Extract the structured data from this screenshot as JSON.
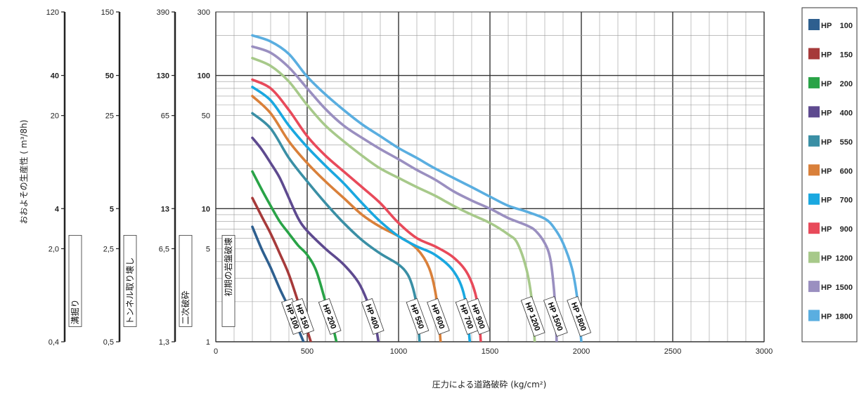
{
  "chart_data": {
    "type": "line",
    "xlabel": "圧力による道路破砕 (kg/cm²)",
    "ylabel": "おおよその生産性 ( m³/8h)",
    "xlim": [
      0,
      3000
    ],
    "x_ticks": [
      0,
      500,
      1000,
      1500,
      2000,
      2500,
      3000
    ],
    "y_scale": "log",
    "ylim": [
      1,
      300
    ],
    "y_ticks": [
      {
        "v": 1,
        "label": "1"
      },
      {
        "v": 5,
        "label": "5"
      },
      {
        "v": 10,
        "label": "10",
        "bold": true
      },
      {
        "v": 50,
        "label": "50"
      },
      {
        "v": 100,
        "label": "100",
        "bold": true
      },
      {
        "v": 300,
        "label": "300"
      }
    ],
    "secondary_axes": [
      {
        "name": "溝掘り",
        "ticks": [
          {
            "v": 1,
            "label": "0,4"
          },
          {
            "v": 5,
            "label": "2,0"
          },
          {
            "v": 10,
            "label": "4",
            "bold": true
          },
          {
            "v": 50,
            "label": "20"
          },
          {
            "v": 100,
            "label": "40",
            "bold": true
          },
          {
            "v": 300,
            "label": "120"
          }
        ]
      },
      {
        "name": "トンネル取り壊し",
        "ticks": [
          {
            "v": 1,
            "label": "0,5"
          },
          {
            "v": 5,
            "label": "2,5"
          },
          {
            "v": 10,
            "label": "5",
            "bold": true
          },
          {
            "v": 50,
            "label": "25"
          },
          {
            "v": 100,
            "label": "50",
            "bold": true
          },
          {
            "v": 300,
            "label": "150"
          }
        ]
      },
      {
        "name": "二次破砕",
        "ticks": [
          {
            "v": 1,
            "label": "1,3"
          },
          {
            "v": 5,
            "label": "6,5"
          },
          {
            "v": 10,
            "label": "13",
            "bold": true
          },
          {
            "v": 50,
            "label": "65"
          },
          {
            "v": 100,
            "label": "130",
            "bold": true
          },
          {
            "v": 300,
            "label": "390"
          }
        ]
      }
    ],
    "primary_axis_name": "初期の岩盤破壊",
    "legend_position": "right",
    "series": [
      {
        "name": "HP 100",
        "tag": "HP 100",
        "color": "#2e5f8f",
        "points": [
          [
            200,
            7.3
          ],
          [
            250,
            5.0
          ],
          [
            300,
            3.6
          ],
          [
            350,
            2.5
          ],
          [
            400,
            1.8
          ],
          [
            440,
            1.35
          ],
          [
            480,
            1.0
          ]
        ]
      },
      {
        "name": "HP 150",
        "tag": "HP 150",
        "color": "#a63a3a",
        "points": [
          [
            200,
            12
          ],
          [
            250,
            8.8
          ],
          [
            300,
            6.5
          ],
          [
            350,
            4.6
          ],
          [
            400,
            3.2
          ],
          [
            450,
            2.0
          ],
          [
            490,
            1.35
          ],
          [
            520,
            1.0
          ]
        ]
      },
      {
        "name": "HP 200",
        "tag": "HP 200",
        "color": "#29a347",
        "points": [
          [
            200,
            19
          ],
          [
            250,
            14
          ],
          [
            300,
            10.5
          ],
          [
            350,
            8.0
          ],
          [
            400,
            6.5
          ],
          [
            450,
            5.3
          ],
          [
            500,
            4.5
          ],
          [
            550,
            3.4
          ],
          [
            600,
            2.0
          ],
          [
            640,
            1.3
          ],
          [
            660,
            1.0
          ]
        ]
      },
      {
        "name": "HP 400",
        "tag": "HP 400",
        "color": "#5e4a8f",
        "points": [
          [
            200,
            34
          ],
          [
            250,
            28
          ],
          [
            300,
            22
          ],
          [
            350,
            17
          ],
          [
            400,
            12
          ],
          [
            450,
            8.5
          ],
          [
            500,
            6.8
          ],
          [
            600,
            5.0
          ],
          [
            700,
            3.8
          ],
          [
            780,
            2.8
          ],
          [
            830,
            2.0
          ],
          [
            870,
            1.4
          ],
          [
            890,
            1.0
          ]
        ]
      },
      {
        "name": "HP 550",
        "tag": "HP 550",
        "color": "#3a8fa5",
        "points": [
          [
            200,
            52
          ],
          [
            300,
            40
          ],
          [
            400,
            24
          ],
          [
            500,
            16
          ],
          [
            600,
            11
          ],
          [
            700,
            7.8
          ],
          [
            800,
            5.8
          ],
          [
            900,
            4.6
          ],
          [
            1000,
            3.8
          ],
          [
            1050,
            3.2
          ],
          [
            1080,
            2.5
          ],
          [
            1100,
            1.8
          ],
          [
            1115,
            1.0
          ]
        ]
      },
      {
        "name": "HP 600",
        "tag": "HP 600",
        "color": "#d9803a",
        "points": [
          [
            200,
            70
          ],
          [
            300,
            52
          ],
          [
            400,
            32
          ],
          [
            500,
            22
          ],
          [
            600,
            16
          ],
          [
            700,
            12
          ],
          [
            800,
            9
          ],
          [
            900,
            7.3
          ],
          [
            1000,
            6.2
          ],
          [
            1100,
            5.0
          ],
          [
            1170,
            3.5
          ],
          [
            1210,
            2.0
          ],
          [
            1230,
            1.0
          ]
        ]
      },
      {
        "name": "HP 700",
        "tag": "HP 700",
        "color": "#1aa8e0",
        "points": [
          [
            200,
            82
          ],
          [
            300,
            65
          ],
          [
            400,
            42
          ],
          [
            500,
            29
          ],
          [
            600,
            21
          ],
          [
            700,
            15.5
          ],
          [
            800,
            11
          ],
          [
            900,
            8.0
          ],
          [
            1000,
            6.2
          ],
          [
            1100,
            5.2
          ],
          [
            1200,
            4.5
          ],
          [
            1300,
            3.4
          ],
          [
            1360,
            2.2
          ],
          [
            1390,
            1.0
          ]
        ]
      },
      {
        "name": "HP 900",
        "tag": "HP 900",
        "color": "#e84a5a",
        "points": [
          [
            200,
            93
          ],
          [
            300,
            80
          ],
          [
            400,
            55
          ],
          [
            500,
            35
          ],
          [
            600,
            25
          ],
          [
            700,
            19
          ],
          [
            800,
            14.5
          ],
          [
            900,
            11
          ],
          [
            1000,
            7.8
          ],
          [
            1100,
            6.0
          ],
          [
            1200,
            5.2
          ],
          [
            1300,
            4.3
          ],
          [
            1380,
            3.2
          ],
          [
            1430,
            2.0
          ],
          [
            1450,
            1.0
          ]
        ]
      },
      {
        "name": "HP 1200",
        "tag": "HP 1200",
        "color": "#a7c98a",
        "points": [
          [
            200,
            135
          ],
          [
            300,
            118
          ],
          [
            400,
            90
          ],
          [
            500,
            60
          ],
          [
            600,
            42
          ],
          [
            700,
            32
          ],
          [
            800,
            25
          ],
          [
            900,
            20
          ],
          [
            1000,
            17
          ],
          [
            1100,
            14.5
          ],
          [
            1200,
            12.5
          ],
          [
            1300,
            10.5
          ],
          [
            1400,
            9.0
          ],
          [
            1500,
            7.8
          ],
          [
            1600,
            6.4
          ],
          [
            1650,
            5.5
          ],
          [
            1700,
            3.5
          ],
          [
            1730,
            2.0
          ],
          [
            1745,
            1.0
          ]
        ]
      },
      {
        "name": "HP 1500",
        "tag": "HP 1500",
        "color": "#9a8fc0",
        "points": [
          [
            200,
            165
          ],
          [
            300,
            148
          ],
          [
            400,
            115
          ],
          [
            500,
            80
          ],
          [
            600,
            56
          ],
          [
            700,
            42
          ],
          [
            800,
            34
          ],
          [
            900,
            28
          ],
          [
            1000,
            23.5
          ],
          [
            1100,
            19.5
          ],
          [
            1200,
            16.5
          ],
          [
            1300,
            13.5
          ],
          [
            1400,
            11.5
          ],
          [
            1500,
            10
          ],
          [
            1600,
            8.5
          ],
          [
            1700,
            7.5
          ],
          [
            1750,
            6.8
          ],
          [
            1800,
            5.5
          ],
          [
            1830,
            4.2
          ],
          [
            1850,
            2.5
          ],
          [
            1860,
            1.5
          ],
          [
            1865,
            1.0
          ]
        ]
      },
      {
        "name": "HP 1800",
        "tag": "HP 1800",
        "color": "#5aaee0",
        "points": [
          [
            200,
            200
          ],
          [
            300,
            180
          ],
          [
            400,
            145
          ],
          [
            500,
            98
          ],
          [
            600,
            72
          ],
          [
            700,
            55
          ],
          [
            800,
            43
          ],
          [
            900,
            35
          ],
          [
            1000,
            28.5
          ],
          [
            1100,
            24
          ],
          [
            1200,
            20
          ],
          [
            1300,
            17
          ],
          [
            1400,
            14.5
          ],
          [
            1500,
            12.3
          ],
          [
            1600,
            10.5
          ],
          [
            1700,
            9.5
          ],
          [
            1800,
            8.4
          ],
          [
            1850,
            7.2
          ],
          [
            1900,
            5.5
          ],
          [
            1950,
            3.5
          ],
          [
            1980,
            2.0
          ],
          [
            2000,
            1.0
          ]
        ]
      }
    ]
  }
}
